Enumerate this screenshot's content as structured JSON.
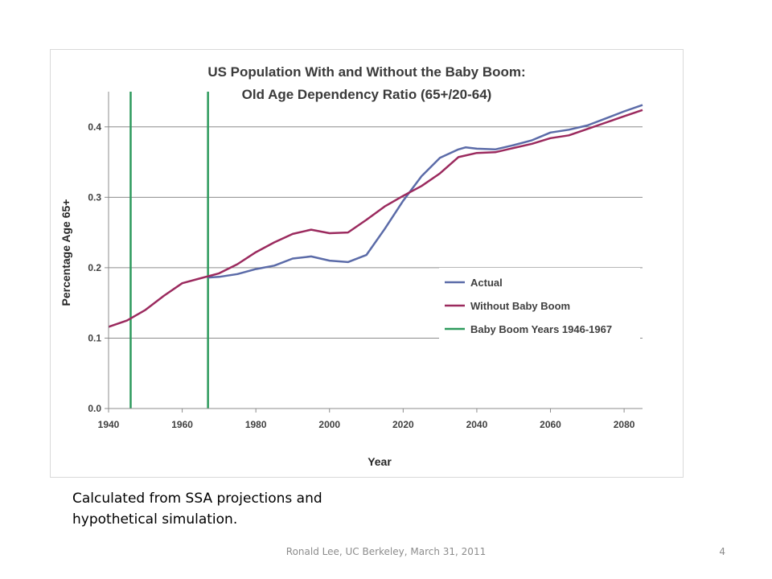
{
  "chart_data": {
    "type": "line",
    "title": "US Population With and Without the Baby Boom:",
    "subtitle": "Old Age Dependency Ratio (65+/20-64)",
    "xlabel": "Year",
    "ylabel": "Percentage Age 65+",
    "xlim": [
      1940,
      2085
    ],
    "ylim": [
      0,
      0.45
    ],
    "x_ticks": [
      1940,
      1960,
      1980,
      2000,
      2020,
      2040,
      2060,
      2080
    ],
    "y_ticks": [
      0.0,
      0.1,
      0.2,
      0.3,
      0.4
    ],
    "x_tick_labels": [
      "1940",
      "1960",
      "1980",
      "2000",
      "2020",
      "2040",
      "2060",
      "2080"
    ],
    "y_tick_labels": [
      "0.0",
      "0.1",
      "0.2",
      "0.3",
      "0.4"
    ],
    "grid": "horizontal",
    "legend_position": "right",
    "series": [
      {
        "name": "Actual",
        "color": "#5b6ba8",
        "points": [
          [
            1967,
            0.186
          ],
          [
            1970,
            0.187
          ],
          [
            1975,
            0.191
          ],
          [
            1980,
            0.198
          ],
          [
            1985,
            0.203
          ],
          [
            1990,
            0.213
          ],
          [
            1995,
            0.216
          ],
          [
            2000,
            0.21
          ],
          [
            2005,
            0.208
          ],
          [
            2010,
            0.218
          ],
          [
            2015,
            0.255
          ],
          [
            2020,
            0.295
          ],
          [
            2025,
            0.33
          ],
          [
            2030,
            0.356
          ],
          [
            2035,
            0.368
          ],
          [
            2037,
            0.371
          ],
          [
            2040,
            0.369
          ],
          [
            2045,
            0.368
          ],
          [
            2050,
            0.374
          ],
          [
            2055,
            0.381
          ],
          [
            2060,
            0.392
          ],
          [
            2065,
            0.396
          ],
          [
            2070,
            0.402
          ],
          [
            2075,
            0.412
          ],
          [
            2080,
            0.422
          ],
          [
            2085,
            0.431
          ]
        ]
      },
      {
        "name": "Without Baby Boom",
        "color": "#9b2a5e",
        "points": [
          [
            1940,
            0.116
          ],
          [
            1945,
            0.125
          ],
          [
            1950,
            0.14
          ],
          [
            1955,
            0.16
          ],
          [
            1960,
            0.178
          ],
          [
            1965,
            0.185
          ],
          [
            1970,
            0.192
          ],
          [
            1975,
            0.205
          ],
          [
            1980,
            0.222
          ],
          [
            1985,
            0.236
          ],
          [
            1990,
            0.248
          ],
          [
            1995,
            0.254
          ],
          [
            2000,
            0.249
          ],
          [
            2005,
            0.25
          ],
          [
            2010,
            0.268
          ],
          [
            2015,
            0.287
          ],
          [
            2020,
            0.302
          ],
          [
            2025,
            0.316
          ],
          [
            2030,
            0.334
          ],
          [
            2035,
            0.357
          ],
          [
            2040,
            0.363
          ],
          [
            2045,
            0.364
          ],
          [
            2050,
            0.37
          ],
          [
            2055,
            0.376
          ],
          [
            2060,
            0.384
          ],
          [
            2065,
            0.388
          ],
          [
            2070,
            0.397
          ],
          [
            2075,
            0.406
          ],
          [
            2080,
            0.415
          ],
          [
            2085,
            0.424
          ]
        ]
      },
      {
        "name": "Baby Boom Years 1946-1967",
        "color": "#2e9a5d",
        "vlines": [
          1946,
          1967
        ]
      }
    ]
  },
  "caption": {
    "line1": "Calculated from SSA projections and",
    "line2": "hypothetical simulation."
  },
  "footer": {
    "text": "Ronald Lee, UC Berkeley, March 31, 2011",
    "page_number": "4"
  }
}
